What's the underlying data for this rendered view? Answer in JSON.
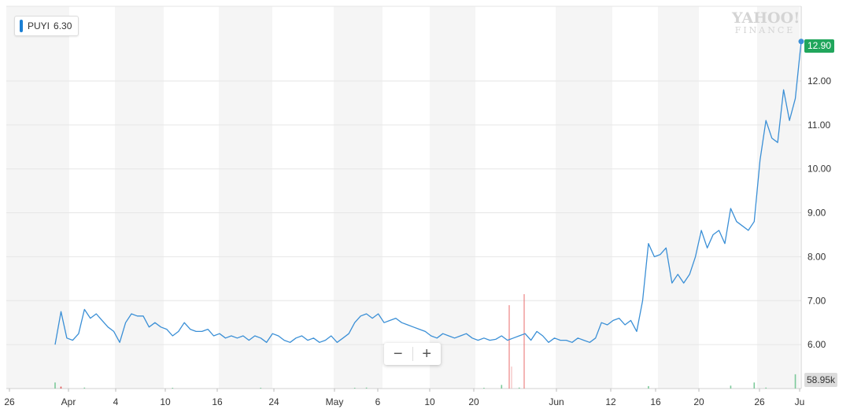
{
  "legend": {
    "symbol": "PUYI",
    "value": "6.30",
    "color": "#1a7fd4"
  },
  "watermark": {
    "line1": "YAHOO!",
    "line2": "FINANCE"
  },
  "zoom": {
    "minus": "−",
    "plus": "+"
  },
  "last_price_label": "12.90",
  "volume_label": "58.95k",
  "colors": {
    "line": "#3a8fd6",
    "price_tag": "#21a65c",
    "volume_up": "#7cc99a",
    "volume_down": "#e05a5a",
    "band": "#f5f5f5"
  },
  "chart_data": {
    "type": "line",
    "title": "",
    "xlabel": "",
    "ylabel": "",
    "ylim": [
      5.0,
      13.7
    ],
    "y_ticks": [
      "6.00",
      "7.00",
      "8.00",
      "9.00",
      "10.00",
      "11.00",
      "12.00"
    ],
    "x_ticks": [
      "26",
      "Apr",
      "4",
      "10",
      "16",
      "24",
      "May",
      "6",
      "10",
      "20",
      "Jun",
      "12",
      "16",
      "20",
      "26",
      "Ju"
    ],
    "grid": true,
    "legend_position": "top-left",
    "series": [
      {
        "name": "PUYI",
        "points": [
          [
            0,
            6.0
          ],
          [
            1,
            6.75
          ],
          [
            2,
            6.15
          ],
          [
            3,
            6.1
          ],
          [
            4,
            6.25
          ],
          [
            5,
            6.8
          ],
          [
            6,
            6.6
          ],
          [
            7,
            6.7
          ],
          [
            8,
            6.55
          ],
          [
            9,
            6.4
          ],
          [
            10,
            6.3
          ],
          [
            11,
            6.05
          ],
          [
            12,
            6.5
          ],
          [
            13,
            6.7
          ],
          [
            14,
            6.65
          ],
          [
            15,
            6.65
          ],
          [
            16,
            6.4
          ],
          [
            17,
            6.5
          ],
          [
            18,
            6.4
          ],
          [
            19,
            6.35
          ],
          [
            20,
            6.2
          ],
          [
            21,
            6.3
          ],
          [
            22,
            6.5
          ],
          [
            23,
            6.35
          ],
          [
            24,
            6.3
          ],
          [
            25,
            6.3
          ],
          [
            26,
            6.35
          ],
          [
            27,
            6.2
          ],
          [
            28,
            6.25
          ],
          [
            29,
            6.15
          ],
          [
            30,
            6.2
          ],
          [
            31,
            6.15
          ],
          [
            32,
            6.2
          ],
          [
            33,
            6.1
          ],
          [
            34,
            6.2
          ],
          [
            35,
            6.15
          ],
          [
            36,
            6.05
          ],
          [
            37,
            6.25
          ],
          [
            38,
            6.2
          ],
          [
            39,
            6.1
          ],
          [
            40,
            6.05
          ],
          [
            41,
            6.15
          ],
          [
            42,
            6.2
          ],
          [
            43,
            6.1
          ],
          [
            44,
            6.15
          ],
          [
            45,
            6.05
          ],
          [
            46,
            6.1
          ],
          [
            47,
            6.2
          ],
          [
            48,
            6.05
          ],
          [
            49,
            6.15
          ],
          [
            50,
            6.25
          ],
          [
            51,
            6.5
          ],
          [
            52,
            6.65
          ],
          [
            53,
            6.7
          ],
          [
            54,
            6.6
          ],
          [
            55,
            6.7
          ],
          [
            56,
            6.5
          ],
          [
            57,
            6.55
          ],
          [
            58,
            6.6
          ],
          [
            59,
            6.5
          ],
          [
            60,
            6.45
          ],
          [
            61,
            6.4
          ],
          [
            62,
            6.35
          ],
          [
            63,
            6.3
          ],
          [
            64,
            6.2
          ],
          [
            65,
            6.15
          ],
          [
            66,
            6.25
          ],
          [
            67,
            6.2
          ],
          [
            68,
            6.15
          ],
          [
            69,
            6.2
          ],
          [
            70,
            6.25
          ],
          [
            71,
            6.15
          ],
          [
            72,
            6.1
          ],
          [
            73,
            6.15
          ],
          [
            74,
            6.1
          ],
          [
            75,
            6.12
          ],
          [
            76,
            6.2
          ],
          [
            77,
            6.1
          ],
          [
            78,
            6.15
          ],
          [
            79,
            6.2
          ],
          [
            80,
            6.25
          ],
          [
            81,
            6.1
          ],
          [
            82,
            6.3
          ],
          [
            83,
            6.2
          ],
          [
            84,
            6.05
          ],
          [
            85,
            6.15
          ],
          [
            86,
            6.1
          ],
          [
            87,
            6.1
          ],
          [
            88,
            6.05
          ],
          [
            89,
            6.15
          ],
          [
            90,
            6.1
          ],
          [
            91,
            6.05
          ],
          [
            92,
            6.15
          ],
          [
            93,
            6.5
          ],
          [
            94,
            6.45
          ],
          [
            95,
            6.55
          ],
          [
            96,
            6.6
          ],
          [
            97,
            6.45
          ],
          [
            98,
            6.55
          ],
          [
            99,
            6.3
          ],
          [
            100,
            7.0
          ],
          [
            101,
            8.3
          ],
          [
            102,
            8.0
          ],
          [
            103,
            8.05
          ],
          [
            104,
            8.2
          ],
          [
            105,
            7.4
          ],
          [
            106,
            7.6
          ],
          [
            107,
            7.4
          ],
          [
            108,
            7.6
          ],
          [
            109,
            8.0
          ],
          [
            110,
            8.6
          ],
          [
            111,
            8.2
          ],
          [
            112,
            8.5
          ],
          [
            113,
            8.6
          ],
          [
            114,
            8.3
          ],
          [
            115,
            9.1
          ],
          [
            116,
            8.8
          ],
          [
            117,
            8.7
          ],
          [
            118,
            8.6
          ],
          [
            119,
            8.8
          ],
          [
            120,
            10.2
          ],
          [
            121,
            11.1
          ],
          [
            122,
            10.7
          ],
          [
            123,
            10.6
          ],
          [
            124,
            11.8
          ],
          [
            125,
            11.1
          ],
          [
            126,
            11.6
          ],
          [
            127,
            12.9
          ]
        ]
      }
    ],
    "volume": {
      "max": 200000,
      "bars": [
        [
          0,
          25000,
          "up"
        ],
        [
          1,
          8000,
          "down"
        ],
        [
          5,
          4000,
          "up"
        ],
        [
          20,
          3000,
          "up"
        ],
        [
          35,
          2500,
          "up"
        ],
        [
          51,
          3000,
          "up"
        ],
        [
          53,
          4000,
          "up"
        ],
        [
          73,
          2000,
          "up"
        ],
        [
          76,
          15000,
          "up"
        ],
        [
          79,
          4000,
          "up"
        ],
        [
          101,
          10000,
          "up"
        ],
        [
          115,
          12000,
          "up"
        ],
        [
          119,
          25000,
          "up"
        ],
        [
          121,
          4000,
          "up"
        ],
        [
          126,
          58950,
          "up"
        ]
      ]
    },
    "annotations": [
      "12.90",
      "58.95k"
    ]
  }
}
